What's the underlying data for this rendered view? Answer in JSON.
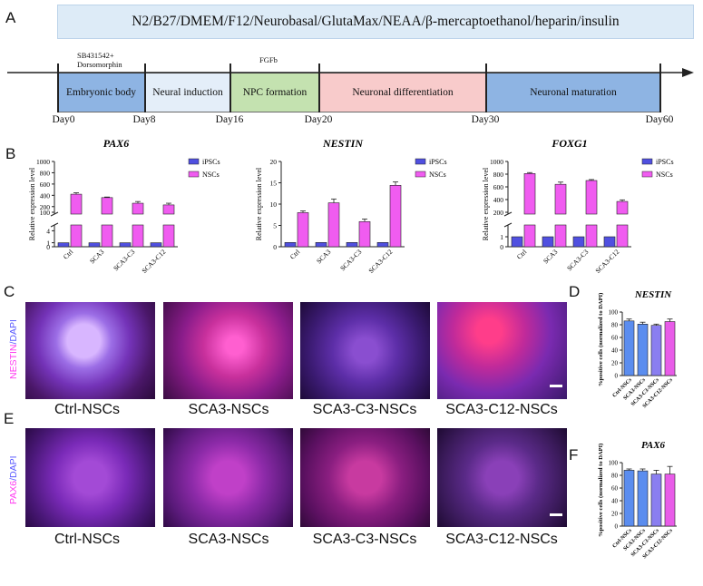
{
  "panel_labels": [
    "A",
    "B",
    "C",
    "D",
    "E",
    "F"
  ],
  "panel_a": {
    "medium": "N2/B27/DMEM/F12/Neurobasal/GlutaMax/NEAA/β-mercaptoethanol/heparin/insulin",
    "annotations": [
      "SB431542+",
      "Dorsomorphin",
      "FGFb"
    ],
    "stages": [
      {
        "label": "Embryonic body",
        "color": "#8eb4e3"
      },
      {
        "label": "Neural induction",
        "color": "#e4eef9"
      },
      {
        "label": "NPC formation",
        "color": "#c4e2b0"
      },
      {
        "label": "Neuronal differentiation",
        "color": "#f8cbcb"
      },
      {
        "label": "Neuronal maturation",
        "color": "#8eb4e3"
      }
    ],
    "days": [
      "Day0",
      "Day8",
      "Day16",
      "Day20",
      "Day30",
      "Day60"
    ]
  },
  "chart_data": [
    {
      "type": "bar",
      "title": "PAX6",
      "ylabel": "Relative expression level",
      "categories": [
        "Ctrl",
        "SCA3",
        "SCA3-C3",
        "SCA3-C12"
      ],
      "broken_axis": {
        "lower": [
          0,
          5
        ],
        "upper": [
          100,
          1000
        ]
      },
      "lower_ticks": [
        "0",
        "1",
        "4"
      ],
      "upper_ticks": [
        "100",
        "200",
        "400",
        "600",
        "800",
        "1000"
      ],
      "series": [
        {
          "name": "iPSCs",
          "values": [
            1,
            1,
            1,
            1
          ],
          "color": "#5050e0"
        },
        {
          "name": "NSCs",
          "values": [
            420,
            360,
            260,
            230
          ],
          "errors": [
            25,
            10,
            30,
            30
          ],
          "color": "#f05cf0"
        }
      ]
    },
    {
      "type": "bar",
      "title": "NESTIN",
      "ylabel": "Relative expression level",
      "categories": [
        "Ctrl",
        "SCA3",
        "SCA3-C3",
        "SCA3-C12"
      ],
      "ylim": [
        0,
        20
      ],
      "ticks": [
        "0",
        "5",
        "10",
        "15",
        "20"
      ],
      "series": [
        {
          "name": "iPSCs",
          "values": [
            1,
            1,
            1,
            1
          ],
          "color": "#5050e0"
        },
        {
          "name": "NSCs",
          "values": [
            8,
            10.3,
            5.9,
            14.4
          ],
          "errors": [
            0.4,
            0.9,
            0.6,
            0.8
          ],
          "color": "#f05cf0"
        }
      ]
    },
    {
      "type": "bar",
      "title": "FOXG1",
      "ylabel": "Relative expression level",
      "categories": [
        "Ctrl",
        "SCA3",
        "SCA3-C3",
        "SCA3-C12"
      ],
      "broken_axis": {
        "lower": [
          0,
          2
        ],
        "upper": [
          200,
          1000
        ]
      },
      "lower_ticks": [
        "0",
        "1"
      ],
      "upper_ticks": [
        "200",
        "400",
        "600",
        "800",
        "1000"
      ],
      "series": [
        {
          "name": "iPSCs",
          "values": [
            1,
            1,
            1,
            1
          ],
          "color": "#5050e0"
        },
        {
          "name": "NSCs",
          "values": [
            810,
            640,
            700,
            370
          ],
          "errors": [
            15,
            35,
            15,
            25
          ],
          "color": "#f05cf0"
        }
      ]
    },
    {
      "type": "bar",
      "title": "NESTIN",
      "ylabel": "%positive cells (normalized to DAPI)",
      "categories": [
        "Ctrl-NSCs",
        "SCA3-NSCs",
        "SCA3-C3-NSCs",
        "SCA3-C12-NSCs"
      ],
      "ylim": [
        0,
        100
      ],
      "ticks": [
        "0",
        "20",
        "40",
        "60",
        "80",
        "100"
      ],
      "values": [
        86,
        81,
        79,
        85
      ],
      "errors": [
        3,
        3,
        2,
        4
      ],
      "colors": [
        "#5b8def",
        "#5b8def",
        "#8a7ef0",
        "#e85ce8"
      ]
    },
    {
      "type": "bar",
      "title": "PAX6",
      "ylabel": "%positive cells (normalized to DAPI)",
      "categories": [
        "Ctrl-NSCs",
        "SCA3-NSCs",
        "SCA3-C3-NSCs",
        "SCA3-C12-NSCs"
      ],
      "ylim": [
        0,
        100
      ],
      "ticks": [
        "0",
        "20",
        "40",
        "60",
        "80",
        "100"
      ],
      "values": [
        88,
        87,
        82,
        82
      ],
      "errors": [
        2,
        3,
        6,
        12
      ],
      "colors": [
        "#5b8def",
        "#5b8def",
        "#8a7ef0",
        "#e85ce8"
      ]
    }
  ],
  "panel_c": {
    "stain": "NESTIN/DAPI",
    "stain_parts": [
      "NESTIN",
      "/DAPI"
    ],
    "stain_colors": [
      "#ff3df0",
      "#5a5aff"
    ],
    "labels": [
      "Ctrl-NSCs",
      "SCA3-NSCs",
      "SCA3-C3-NSCs",
      "SCA3-C12-NSCs"
    ]
  },
  "panel_e": {
    "stain": "PAX6/DAPI",
    "stain_parts": [
      "PAX6",
      "/DAPI"
    ],
    "stain_colors": [
      "#ff3df0",
      "#5a5aff"
    ],
    "labels": [
      "Ctrl-NSCs",
      "SCA3-NSCs",
      "SCA3-C3-NSCs",
      "SCA3-C12-NSCs"
    ]
  }
}
